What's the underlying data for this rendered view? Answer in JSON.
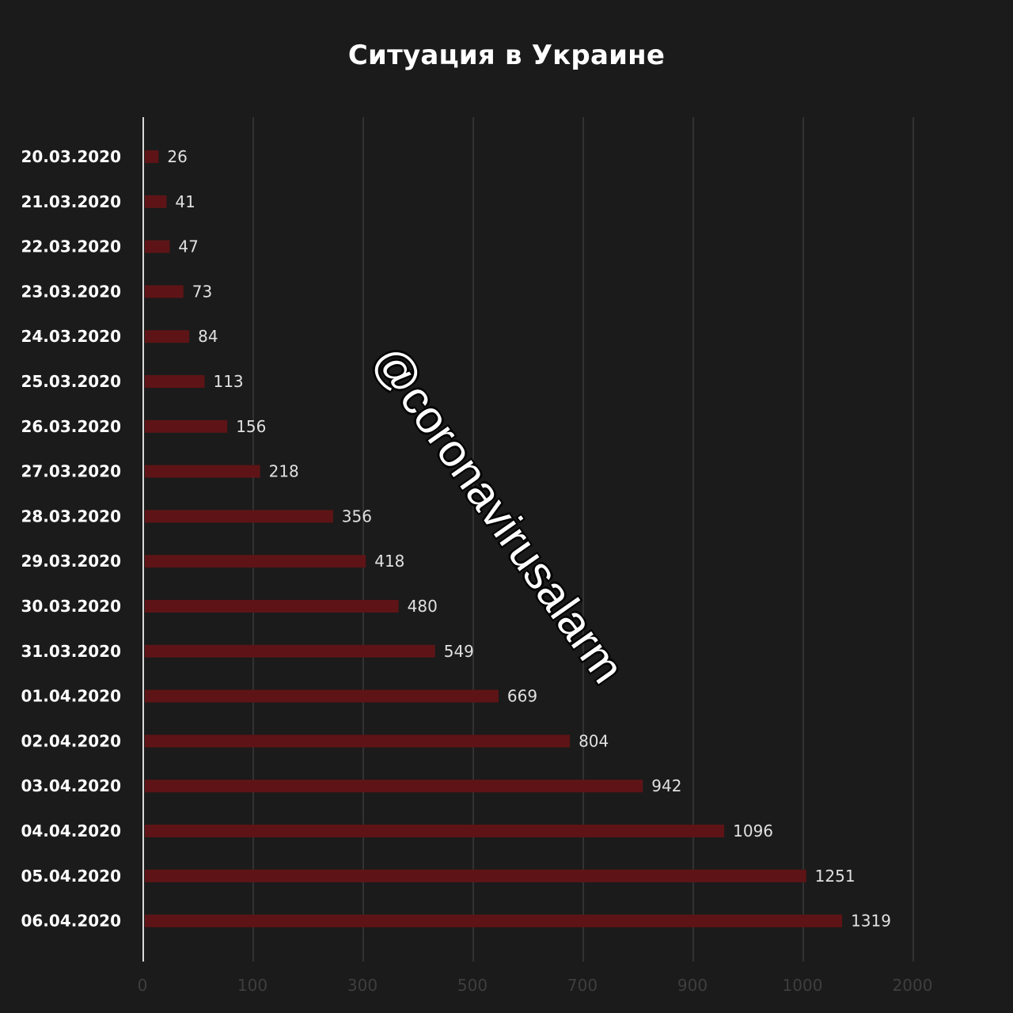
{
  "chart_data": {
    "type": "bar",
    "orientation": "horizontal",
    "title": "Ситуация в Украине",
    "categories": [
      "20.03.2020",
      "21.03.2020",
      "22.03.2020",
      "23.03.2020",
      "24.03.2020",
      "25.03.2020",
      "26.03.2020",
      "27.03.2020",
      "28.03.2020",
      "29.03.2020",
      "30.03.2020",
      "31.03.2020",
      "01.04.2020",
      "02.04.2020",
      "03.04.2020",
      "04.04.2020",
      "05.04.2020",
      "06.04.2020"
    ],
    "values": [
      26,
      41,
      47,
      73,
      84,
      113,
      156,
      218,
      356,
      418,
      480,
      549,
      669,
      804,
      942,
      1096,
      1251,
      1319
    ],
    "xticks": [
      "0",
      "100",
      "300",
      "500",
      "700",
      "900",
      "1000",
      "2000"
    ],
    "grid": true,
    "bar_color": "#5e1416",
    "axis_color": "#d8d8d8",
    "grid_color": "#3a3a3a"
  },
  "watermark": "@coronavirusalarm"
}
